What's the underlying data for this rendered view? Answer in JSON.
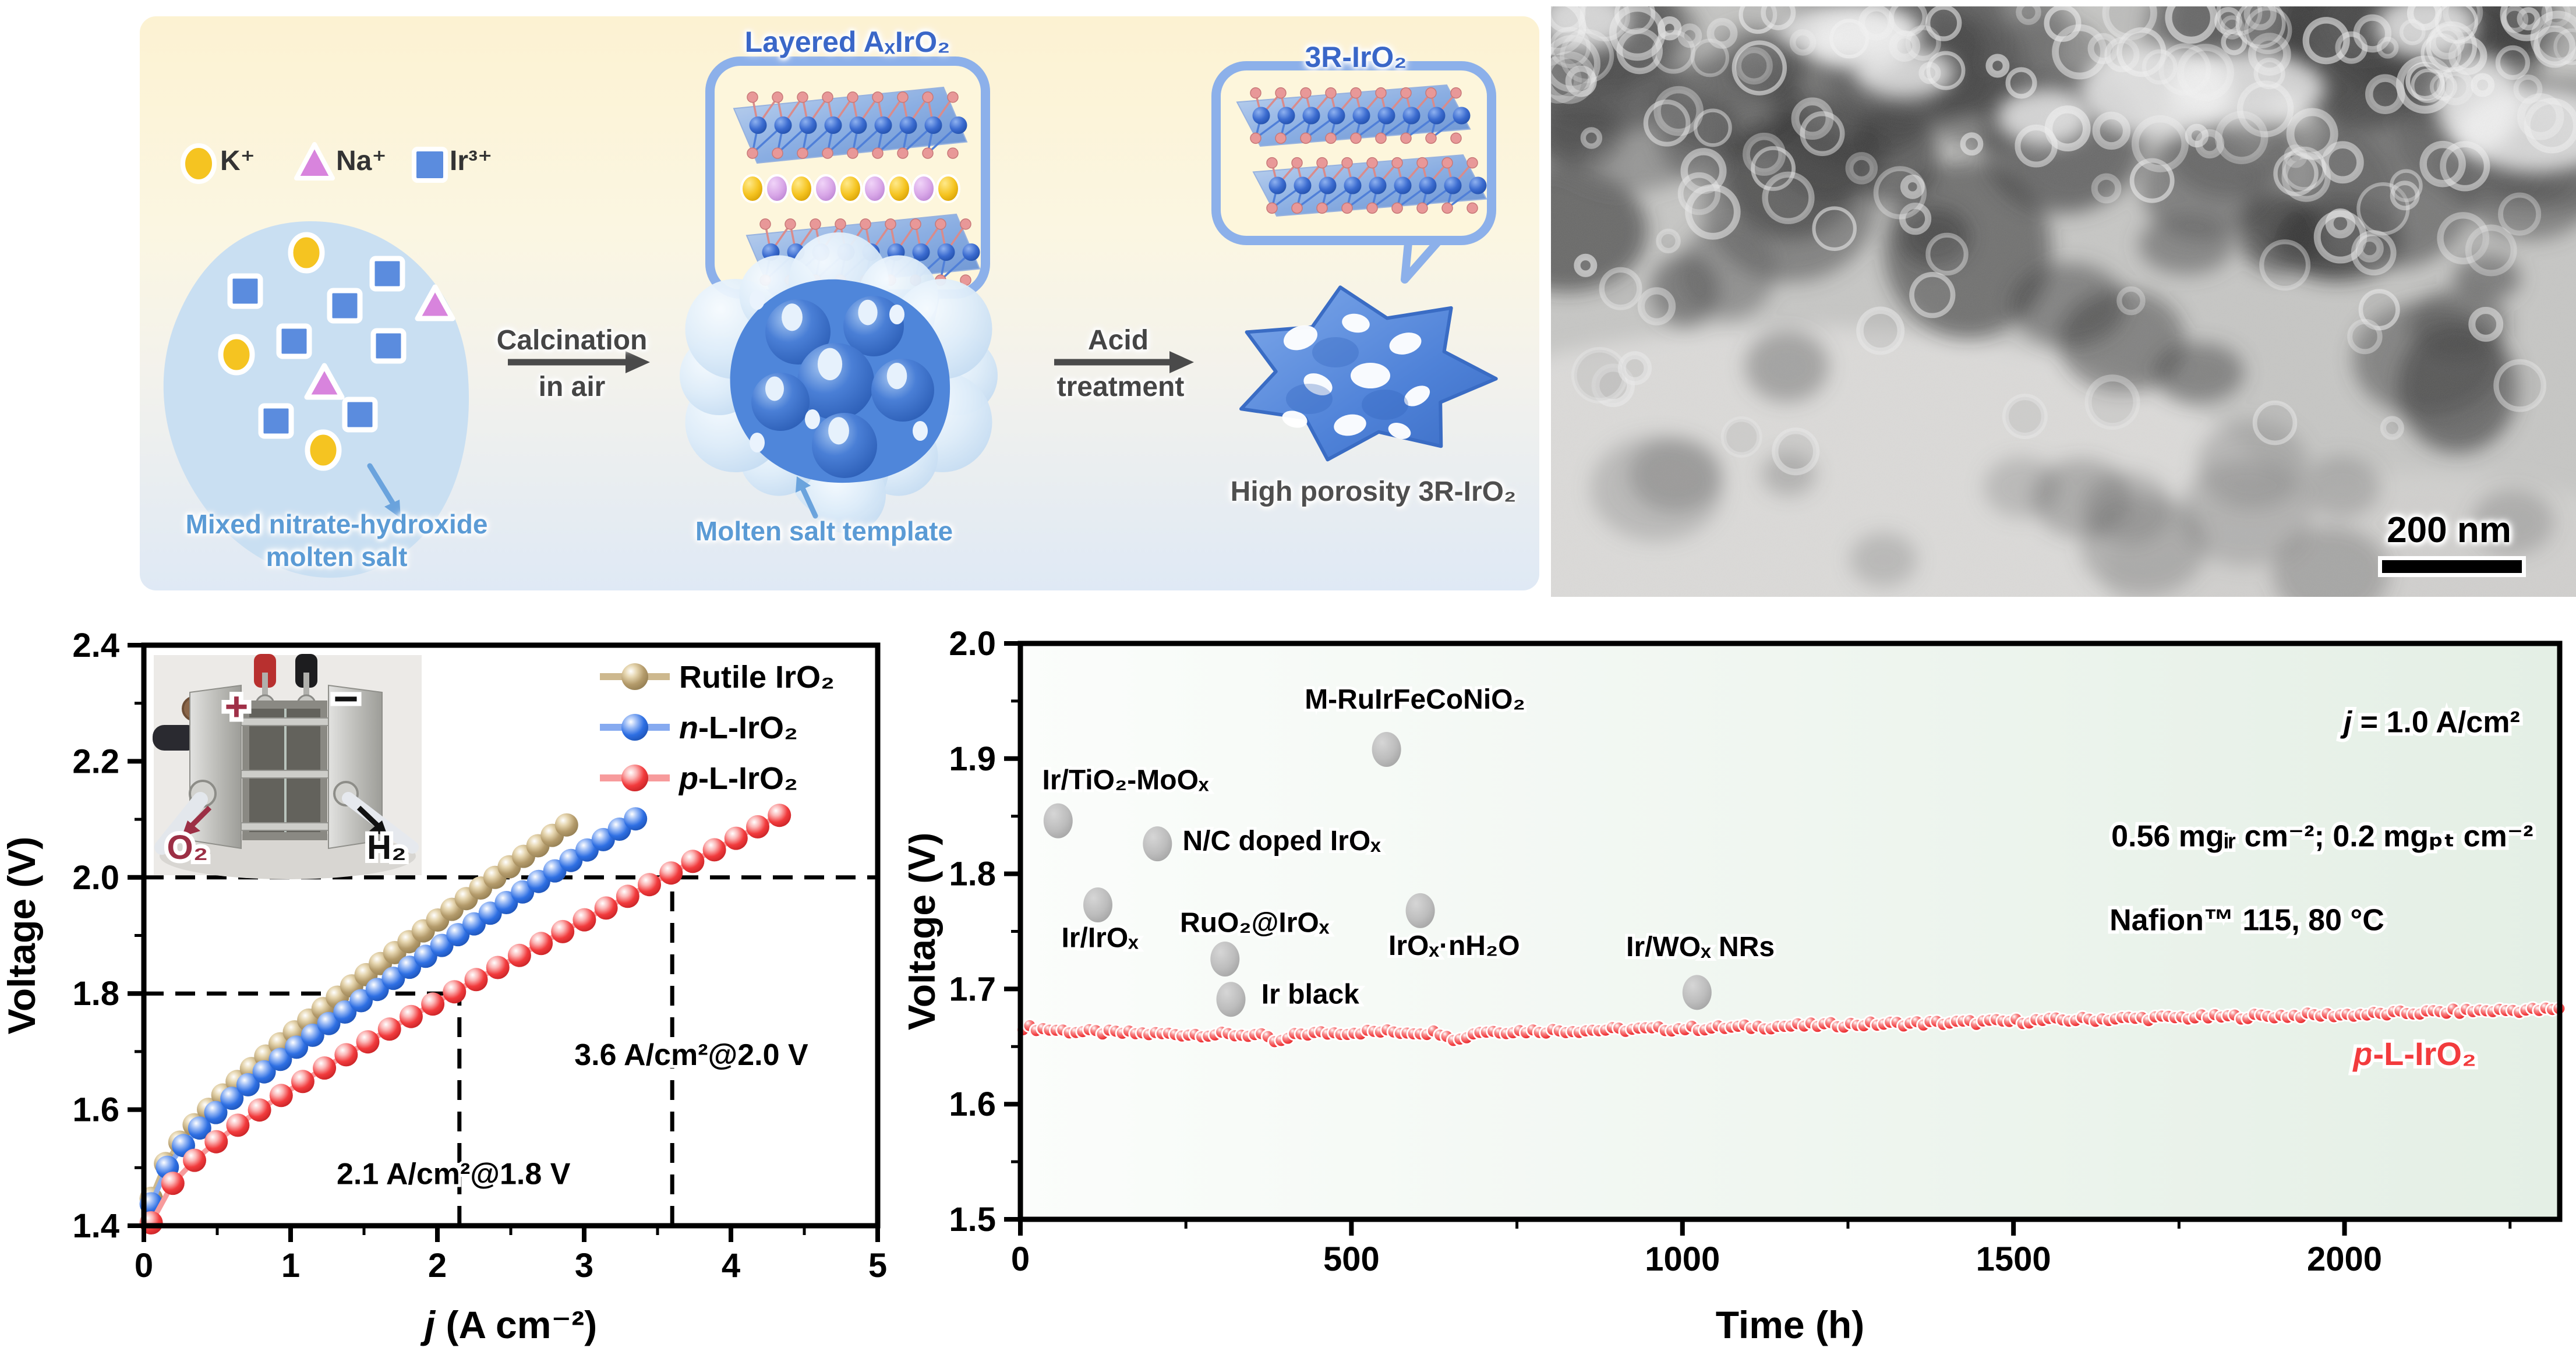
{
  "figure": {
    "schematic": {
      "legend": [
        {
          "symbol": "circle",
          "color": "#f5c421",
          "label": "K⁺"
        },
        {
          "symbol": "triangle",
          "color": "#d884dd",
          "label": "Na⁺"
        },
        {
          "symbol": "square",
          "color": "#5b8cde",
          "label": "Ir³⁺"
        }
      ],
      "precursor_label_lines": [
        "Mixed nitrate-hydroxide",
        "molten salt"
      ],
      "step1_lines": [
        "Calcination",
        "in air"
      ],
      "step2_lines": [
        "Acid",
        "treatment"
      ],
      "callout1_title": "Layered AₓIrO₂",
      "callout2_title": "3R-IrO₂",
      "template_label": "Molten salt template",
      "product_label": "High porosity 3R-IrO₂",
      "arrow_color": "#4a4a4a",
      "blue_accent": "#6aa3dd"
    },
    "tem": {
      "scale_bar": "200 nm"
    }
  },
  "chart_data": [
    {
      "id": "polarization",
      "type": "line",
      "xlabel": {
        "i": "j",
        "t": " (A cm⁻²)"
      },
      "ylabel": "Voltage (V)",
      "xlim": [
        0,
        5
      ],
      "ylim": [
        1.4,
        2.4
      ],
      "xticks": [
        0,
        1,
        2,
        3,
        4,
        5
      ],
      "yticks": [
        1.4,
        1.6,
        1.8,
        2.0,
        2.2,
        2.4
      ],
      "grid": false,
      "legend_position": "top-right-inside",
      "series": [
        {
          "label": {
            "i": "",
            "t": "Rutile IrO₂"
          },
          "color": "#b49b6b",
          "line_color": "#cdb88e",
          "dark": "#8f7a4f",
          "light": "#e6d6b0",
          "model": {
            "a": 1.5585,
            "b": 0.17,
            "c": 0.04
          },
          "j_start": 0.05,
          "j_end": 2.88,
          "points": 30,
          "end_voltage": 2.09
        },
        {
          "label": {
            "i": "n",
            "t": "-L-IrO₂"
          },
          "color": "#2e6fe3",
          "line_color": "#86aaf0",
          "dark": "#1b4fb0",
          "light": "#9cbcf6",
          "model": {
            "a": 1.55,
            "b": 0.15,
            "c": 0.04
          },
          "j_start": 0.05,
          "j_end": 3.35,
          "points": 31,
          "end_voltage": 2.1
        },
        {
          "label": {
            "i": "p",
            "t": "-L-IrO₂"
          },
          "color": "#f23b3d",
          "line_color": "#f79b9c",
          "dark": "#c21f22",
          "light": "#fbb6b6",
          "model": {
            "a": 1.51,
            "b": 0.125,
            "c": 0.038
          },
          "j_start": 0.05,
          "j_end": 4.33,
          "points": 30,
          "end_voltage": 2.09
        }
      ],
      "readouts": [
        {
          "text": "2.1 A/cm²@1.8 V",
          "at": [
            2.11,
            1.49
          ],
          "j": 2.1,
          "v": 1.8
        },
        {
          "text": "3.6 A/cm²@2.0 V",
          "at": [
            3.73,
            1.695
          ],
          "j": 3.6,
          "v": 2.0
        }
      ],
      "guide_lines": {
        "h_full": [
          2.0
        ],
        "h_partial": [
          {
            "v": 1.8,
            "j_to": 2.15
          }
        ],
        "v_partial": [
          {
            "j": 2.15,
            "v_to": 1.8
          },
          {
            "j": 3.6,
            "v_to": 2.0
          }
        ]
      },
      "inset": {
        "plus": "+",
        "minus": "−",
        "o2": "O₂",
        "h2": "H₂"
      }
    },
    {
      "id": "stability",
      "type": "line",
      "xlabel": "Time (h)",
      "ylabel": "Voltage (V)",
      "xlim": [
        0,
        2325
      ],
      "ylim": [
        1.5,
        2.0
      ],
      "xticks": [
        0,
        500,
        1000,
        1500,
        2000
      ],
      "yticks": [
        1.5,
        1.6,
        1.7,
        1.8,
        1.9,
        2.0
      ],
      "bg_gradient": [
        "#fbfdfb",
        "#e4efe5"
      ],
      "series_label": {
        "i": "p",
        "t": "-L-IrO₂"
      },
      "series_color": "#f23b3d",
      "baseline": [
        [
          0,
          1.667
        ],
        [
          80,
          1.663
        ],
        [
          200,
          1.661
        ],
        [
          360,
          1.66
        ],
        [
          390,
          1.653
        ],
        [
          420,
          1.661
        ],
        [
          540,
          1.663
        ],
        [
          640,
          1.662
        ],
        [
          660,
          1.655
        ],
        [
          690,
          1.663
        ],
        [
          840,
          1.664
        ],
        [
          1040,
          1.666
        ],
        [
          1240,
          1.669
        ],
        [
          1440,
          1.671
        ],
        [
          1640,
          1.674
        ],
        [
          1840,
          1.676
        ],
        [
          2040,
          1.678
        ],
        [
          2200,
          1.681
        ],
        [
          2325,
          1.682
        ]
      ],
      "noise": 0.0022,
      "point_step": 10,
      "benchmark_color": "#bdbdbd",
      "benchmarks": [
        {
          "label": "Ir/TiO₂-MoOₓ",
          "t": 57,
          "v": 1.846,
          "label_at": [
            33,
            1.882
          ],
          "anchor": "start"
        },
        {
          "label": "Ir/IrOₓ",
          "t": 117,
          "v": 1.773,
          "label_at": [
            62,
            1.745
          ],
          "anchor": "start"
        },
        {
          "label": "N/C doped IrOₓ",
          "t": 207,
          "v": 1.826,
          "label_at": [
            245,
            1.829
          ],
          "anchor": "start"
        },
        {
          "label": "RuO₂@IrOₓ",
          "t": 309,
          "v": 1.726,
          "label_at": [
            241,
            1.758
          ],
          "anchor": "start"
        },
        {
          "label": "Ir black",
          "t": 318,
          "v": 1.691,
          "label_at": [
            364,
            1.696
          ],
          "anchor": "start"
        },
        {
          "label": "M-RuIrFeCoNiO₂",
          "t": 553,
          "v": 1.908,
          "label_at": [
            596,
            1.952
          ],
          "anchor": "middle"
        },
        {
          "label": "IrOₓ·nH₂O",
          "t": 604,
          "v": 1.768,
          "label_at": [
            556,
            1.738
          ],
          "anchor": "start"
        },
        {
          "label": "Ir/WOₓ NRs",
          "t": 1022,
          "v": 1.697,
          "label_at": [
            915,
            1.737
          ],
          "anchor": "start"
        }
      ],
      "info_lines": [
        {
          "i": "j",
          "t": " = 1.0 A/cm²",
          "at": [
            2265,
            1.932
          ],
          "anchor": "end"
        },
        {
          "i": "",
          "t": "0.56 mgᵢᵣ cm⁻²; 0.2 mgₚₜ cm⁻²",
          "at": [
            2285,
            1.833
          ],
          "anchor": "end"
        },
        {
          "i": "",
          "t": "Nafion™ 115, 80 °C",
          "at": [
            2060,
            1.76
          ],
          "anchor": "end"
        }
      ],
      "series_label_at": [
        2013,
        1.634
      ]
    }
  ]
}
